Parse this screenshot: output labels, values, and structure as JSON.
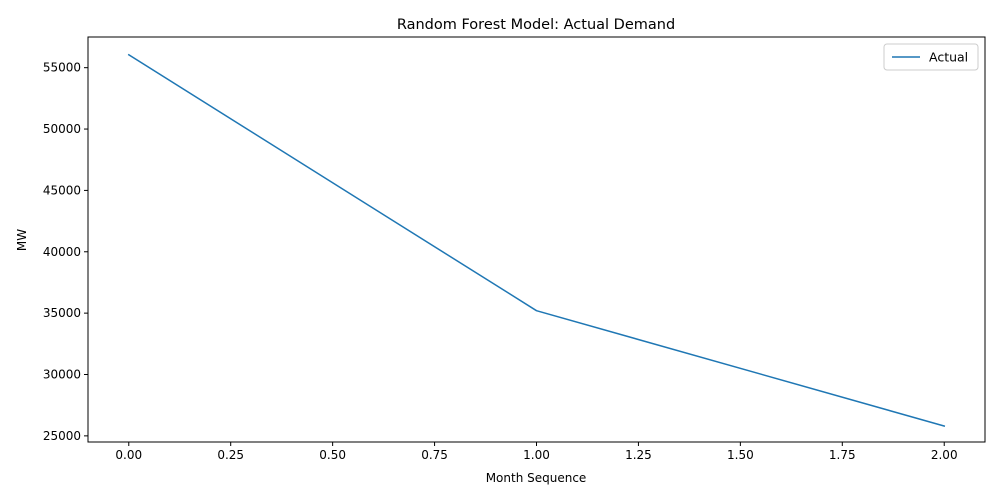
{
  "chart_data": {
    "type": "line",
    "title": "Random Forest Model: Actual Demand",
    "xlabel": "Month Sequence",
    "ylabel": "MW",
    "xlim": [
      -0.1,
      2.1
    ],
    "ylim": [
      24500,
      57500
    ],
    "xticks": [
      0.0,
      0.25,
      0.5,
      0.75,
      1.0,
      1.25,
      1.5,
      1.75,
      2.0
    ],
    "xtick_labels": [
      "0.00",
      "0.25",
      "0.50",
      "0.75",
      "1.00",
      "1.25",
      "1.50",
      "1.75",
      "2.00"
    ],
    "yticks": [
      25000,
      30000,
      35000,
      40000,
      45000,
      50000,
      55000
    ],
    "ytick_labels": [
      "25000",
      "30000",
      "35000",
      "40000",
      "45000",
      "50000",
      "55000"
    ],
    "grid": false,
    "legend_position": "top-right",
    "series": [
      {
        "name": "Actual",
        "color": "#1f77b4",
        "x": [
          0,
          1,
          2
        ],
        "y": [
          56050,
          35200,
          25800
        ]
      }
    ]
  }
}
